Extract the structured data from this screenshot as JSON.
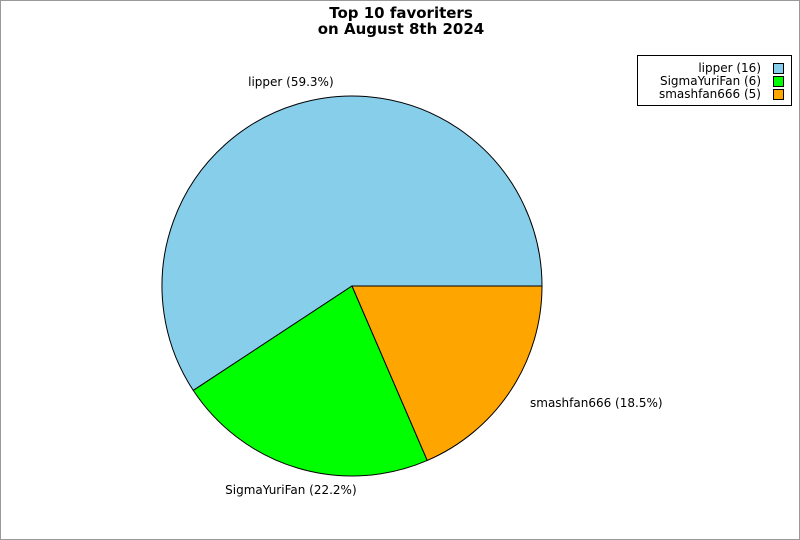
{
  "chart_data": {
    "type": "pie",
    "title_lines": [
      "Top 10 favoriters",
      "on August 8th 2024"
    ],
    "slices": [
      {
        "name": "lipper",
        "value": 16,
        "percent_label": "lipper (59.3%)",
        "legend_label": "lipper (16)",
        "color": "#87ceeb"
      },
      {
        "name": "SigmaYuriFan",
        "value": 6,
        "percent_label": "SigmaYuriFan (22.2%)",
        "legend_label": "SigmaYuriFan (6)",
        "color": "#00ff00"
      },
      {
        "name": "smashfan666",
        "value": 5,
        "percent_label": "smashfan666 (18.5%)",
        "legend_label": "smashfan666 (5)",
        "color": "#ffa500"
      }
    ],
    "start_angle_deg": 0,
    "direction": "counterclockwise",
    "legend_position": "top-right"
  }
}
